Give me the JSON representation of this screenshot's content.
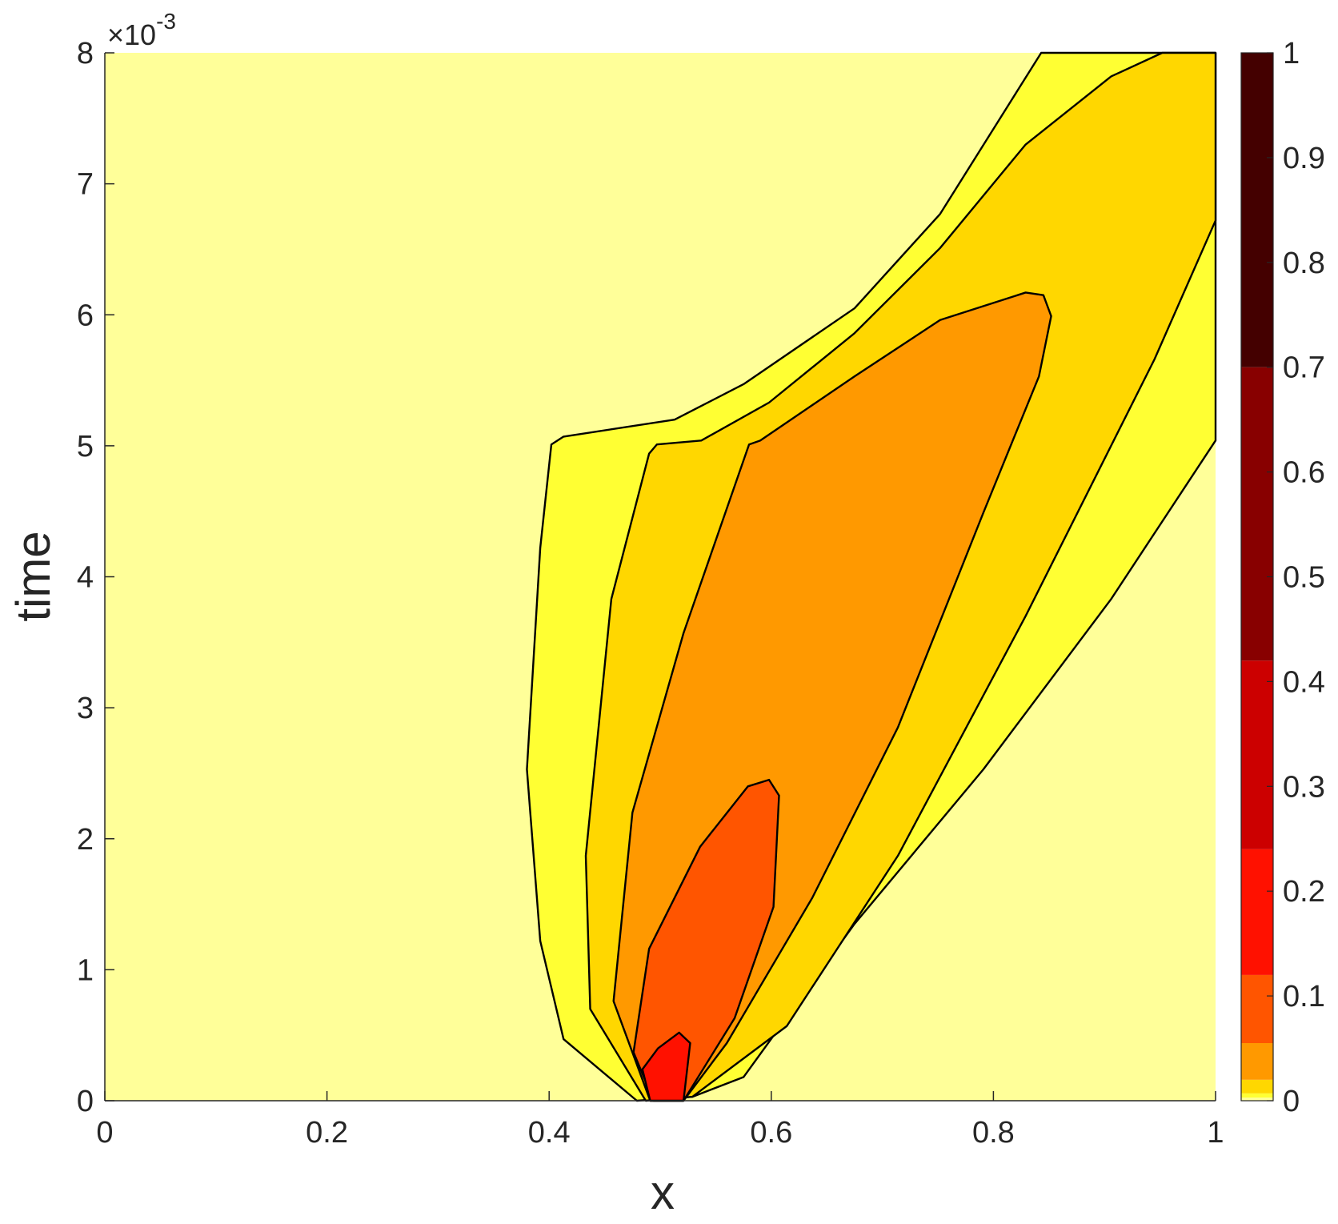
{
  "chart_data": {
    "type": "contourf",
    "x_label": "x",
    "y_label": "time",
    "y_multiplier": "×10",
    "y_multiplier_exponent": "-3",
    "xlim": [
      0,
      1
    ],
    "ylim": [
      0,
      0.008
    ],
    "xticks": [
      0,
      0.2,
      0.4,
      0.6,
      0.8,
      1
    ],
    "yticks": [
      {
        "value": 0,
        "label": "0"
      },
      {
        "value": 0.001,
        "label": "1"
      },
      {
        "value": 0.002,
        "label": "2"
      },
      {
        "value": 0.003,
        "label": "3"
      },
      {
        "value": 0.004,
        "label": "4"
      },
      {
        "value": 0.005,
        "label": "5"
      },
      {
        "value": 0.006,
        "label": "6"
      },
      {
        "value": 0.007,
        "label": "7"
      },
      {
        "value": 0.008,
        "label": "8"
      }
    ],
    "colorbar": {
      "lim": [
        0,
        1
      ],
      "ticks": [
        0,
        0.1,
        0.2,
        0.3,
        0.4,
        0.5,
        0.6,
        0.7,
        0.8,
        0.9,
        1
      ],
      "levels": [
        0,
        0.003,
        0.007,
        0.02,
        0.055,
        0.12,
        0.24,
        0.42,
        0.7,
        1
      ],
      "colors": [
        "#ffff99",
        "#ffff33",
        "#ffd700",
        "#ff9900",
        "#ff5500",
        "#ff1100",
        "#cc0000",
        "#880000",
        "#440000"
      ]
    },
    "contours": [
      {
        "level": 0.003,
        "x": [
          0.479,
          0.413,
          0.392,
          0.38,
          0.392,
          0.402,
          0.413,
          0.513,
          0.575,
          0.675,
          0.752,
          0.843,
          1,
          1,
          0.906,
          0.791,
          0.675,
          0.575,
          0.529
        ],
        "y": [
          0,
          0.00047,
          0.00122,
          0.00253,
          0.00422,
          0.00501,
          0.00507,
          0.0052,
          0.00547,
          0.00605,
          0.00677,
          0.008,
          0.008,
          0.00504,
          0.00383,
          0.00253,
          0.00135,
          0.00018,
          3e-05
        ]
      },
      {
        "level": 0.007,
        "x": [
          0.487,
          0.437,
          0.433,
          0.456,
          0.49,
          0.497,
          0.537,
          0.598,
          0.675,
          0.752,
          0.829,
          0.906,
          0.952,
          1,
          1,
          0.945,
          0.829,
          0.714,
          0.614,
          0.529
        ],
        "y": [
          0,
          0.0007,
          0.00187,
          0.00383,
          0.00494,
          0.00501,
          0.00504,
          0.00533,
          0.00586,
          0.00651,
          0.0073,
          0.00782,
          0.008,
          0.008,
          0.00672,
          0.00566,
          0.0037,
          0.00187,
          0.00057,
          3e-05
        ]
      },
      {
        "level": 0.02,
        "x": [
          0.491,
          0.458,
          0.475,
          0.521,
          0.58,
          0.59,
          0.675,
          0.752,
          0.829,
          0.845,
          0.852,
          0.841,
          0.791,
          0.714,
          0.637,
          0.56,
          0.521
        ],
        "y": [
          0,
          0.00076,
          0.0022,
          0.00357,
          0.00501,
          0.00504,
          0.00553,
          0.00596,
          0.00617,
          0.00615,
          0.00599,
          0.00553,
          0.00449,
          0.00285,
          0.00155,
          0.00044,
          0
        ]
      },
      {
        "level": 0.055,
        "x": [
          0.494,
          0.476,
          0.49,
          0.536,
          0.579,
          0.598,
          0.607,
          0.602,
          0.567,
          0.521
        ],
        "y": [
          0,
          0.00037,
          0.00116,
          0.00194,
          0.0024,
          0.00245,
          0.00233,
          0.00148,
          0.00063,
          0
        ]
      },
      {
        "level": 0.12,
        "x": [
          0.491,
          0.484,
          0.498,
          0.517,
          0.527,
          0.521
        ],
        "y": [
          0,
          0.00024,
          0.0004,
          0.00052,
          0.00044,
          0
        ]
      }
    ]
  }
}
